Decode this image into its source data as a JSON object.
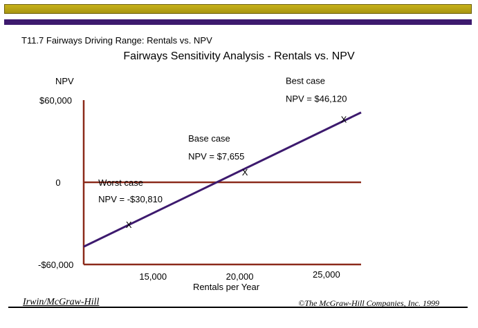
{
  "slide": {
    "label": "T11.7 Fairways Driving Range: Rentals vs. NPV",
    "footer_left": "Irwin/McGraw-Hill",
    "footer_right": "©The McGraw-Hill Companies, Inc. 1999"
  },
  "colors": {
    "gold_bar": "#c7b21a",
    "purple_bar": "#3d1a6e",
    "axis": "#8b2a1a",
    "npv_line": "#3d1a6e"
  },
  "chart_data": {
    "type": "line",
    "title": "Fairways Sensitivity Analysis - Rentals vs. NPV",
    "xlabel": "Rentals per Year",
    "ylabel": "NPV",
    "xlim": [
      11000,
      27000
    ],
    "ylim": [
      -60000,
      60000
    ],
    "x_ticks": [
      {
        "value": 15000,
        "label": "15,000"
      },
      {
        "value": 20000,
        "label": "20,000"
      },
      {
        "value": 25000,
        "label": "25,000"
      }
    ],
    "y_ticks": [
      {
        "value": 60000,
        "label": "$60,000"
      },
      {
        "value": 0,
        "label": "0"
      },
      {
        "value": -60000,
        "label": "-$60,000"
      }
    ],
    "line": {
      "x": [
        11000,
        27000
      ],
      "y": [
        -47000,
        51000
      ]
    },
    "points": [
      {
        "x": 13600,
        "y": -30810,
        "marker": "X",
        "label_line1": "Worst case",
        "label_line2": "NPV = -$30,810"
      },
      {
        "x": 20300,
        "y": 7655,
        "marker": "X",
        "label_line1": "Base case",
        "label_line2": "NPV = $7,655"
      },
      {
        "x": 26000,
        "y": 46120,
        "marker": "X",
        "label_line1": "Best case",
        "label_line2": "NPV = $46,120"
      }
    ],
    "grid": false,
    "legend": "none"
  }
}
